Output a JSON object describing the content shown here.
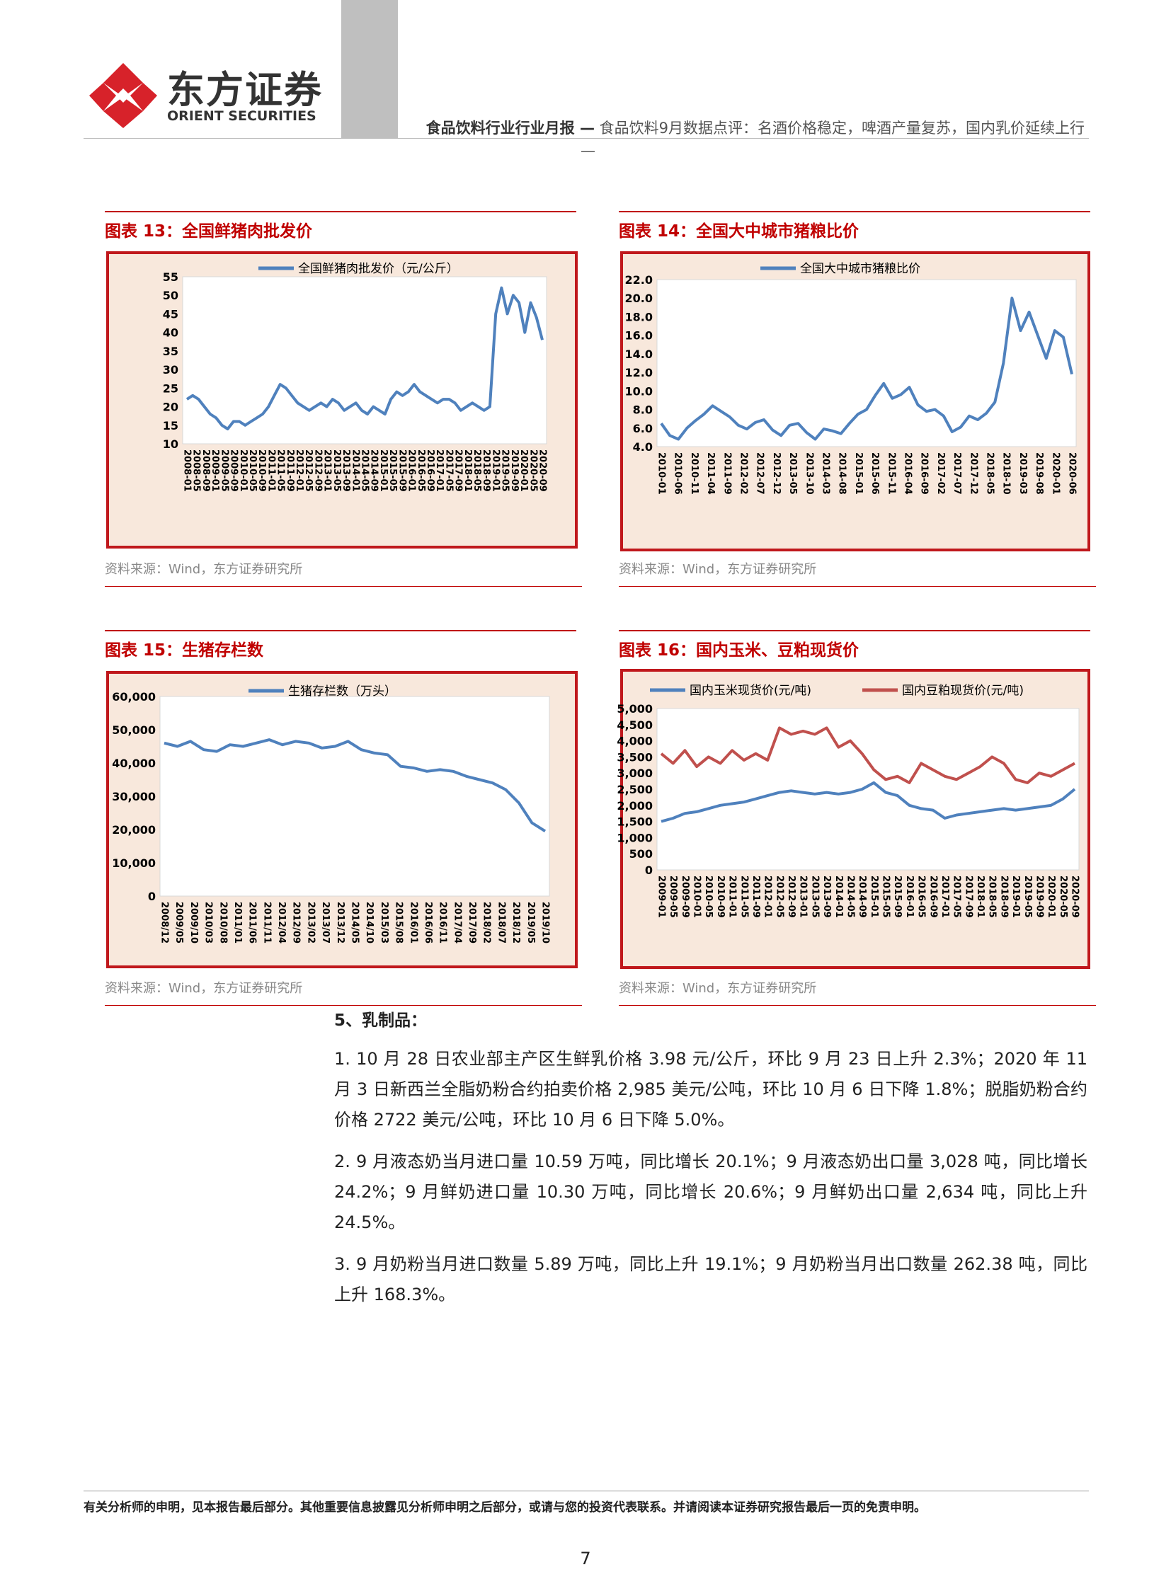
{
  "header": {
    "logo_cn": "东方证券",
    "logo_en": "ORIENT SECURITIES",
    "report_type": "食品饮料行业行业月报 —",
    "report_title": "食品饮料9月数据点评：名酒价格稳定，啤酒产量复苏，国内乳价延续上行",
    "trail": "—"
  },
  "figures": [
    {
      "title": "图表 13：全国鲜猪肉批发价",
      "source": "资料来源：Wind，东方证券研究所",
      "chart_data": {
        "type": "line",
        "title": "",
        "xlabel": "",
        "ylabel": "",
        "ylim": [
          10,
          55
        ],
        "yticks": [
          "55",
          "50",
          "45",
          "40",
          "35",
          "30",
          "25",
          "20",
          "15",
          "10"
        ],
        "legend_position": "top",
        "x_tick_labels": [
          "2008-01",
          "2008-05",
          "2008-09",
          "2009-01",
          "2009-05",
          "2009-09",
          "2010-01",
          "2010-05",
          "2010-09",
          "2011-01",
          "2011-05",
          "2011-09",
          "2012-01",
          "2012-05",
          "2012-09",
          "2013-01",
          "2013-05",
          "2013-09",
          "2014-01",
          "2014-05",
          "2014-09",
          "2015-01",
          "2015-05",
          "2015-09",
          "2016-01",
          "2016-05",
          "2016-09",
          "2017-01",
          "2017-05",
          "2017-09",
          "2018-01",
          "2018-05",
          "2018-09",
          "2019-01",
          "2019-05",
          "2019-09",
          "2020-01",
          "2020-05",
          "2020-09"
        ],
        "series": [
          {
            "name": "全国鲜猪肉批发价（元/公斤）",
            "color": "#4f81bd",
            "values": [
              22,
              23,
              22,
              20,
              18,
              17,
              15,
              14,
              16,
              16,
              15,
              16,
              17,
              18,
              20,
              23,
              26,
              25,
              23,
              21,
              20,
              19,
              20,
              21,
              20,
              22,
              21,
              19,
              20,
              21,
              19,
              18,
              20,
              19,
              18,
              22,
              24,
              23,
              24,
              26,
              24,
              23,
              22,
              21,
              22,
              22,
              21,
              19,
              20,
              21,
              20,
              19,
              20,
              45,
              52,
              45,
              50,
              48,
              40,
              48,
              44,
              38
            ]
          }
        ]
      }
    },
    {
      "title": "图表 14：全国大中城市猪粮比价",
      "source": "资料来源：Wind，东方证券研究所",
      "chart_data": {
        "type": "line",
        "title": "",
        "xlabel": "",
        "ylabel": "",
        "ylim": [
          4.0,
          22.0
        ],
        "yticks": [
          "22.0",
          "20.0",
          "18.0",
          "16.0",
          "14.0",
          "12.0",
          "10.0",
          "8.0",
          "6.0",
          "4.0"
        ],
        "legend_position": "top",
        "x_tick_labels": [
          "2010-01",
          "2010-06",
          "2010-11",
          "2011-04",
          "2011-09",
          "2012-02",
          "2012-07",
          "2012-12",
          "2013-05",
          "2013-10",
          "2014-03",
          "2014-08",
          "2015-01",
          "2015-06",
          "2015-11",
          "2016-04",
          "2016-09",
          "2017-02",
          "2017-07",
          "2017-12",
          "2018-05",
          "2018-10",
          "2019-03",
          "2019-08",
          "2020-01",
          "2020-06"
        ],
        "series": [
          {
            "name": "全国大中城市猪粮比价",
            "color": "#4f81bd",
            "values": [
              6.5,
              5.2,
              4.8,
              6.0,
              6.8,
              7.5,
              8.4,
              7.8,
              7.2,
              6.3,
              5.9,
              6.6,
              6.9,
              5.8,
              5.2,
              6.3,
              6.5,
              5.5,
              4.8,
              5.9,
              5.7,
              5.4,
              6.5,
              7.5,
              8.0,
              9.5,
              10.8,
              9.2,
              9.6,
              10.4,
              8.5,
              7.8,
              8.0,
              7.3,
              5.6,
              6.1,
              7.3,
              6.9,
              7.6,
              8.8,
              13.0,
              20.0,
              16.5,
              18.5,
              16.0,
              13.5,
              16.5,
              15.8,
              11.8
            ]
          }
        ]
      }
    },
    {
      "title": "图表 15：生猪存栏数",
      "source": "资料来源：Wind，东方证券研究所",
      "chart_data": {
        "type": "line",
        "title": "",
        "xlabel": "",
        "ylabel": "",
        "ylim": [
          0,
          60000
        ],
        "yticks": [
          "60,000",
          "50,000",
          "40,000",
          "30,000",
          "20,000",
          "10,000",
          "0"
        ],
        "legend_position": "top",
        "x_tick_labels": [
          "2008/12",
          "2009/05",
          "2009/10",
          "2010/03",
          "2010/08",
          "2011/01",
          "2011/06",
          "2011/11",
          "2012/04",
          "2012/09",
          "2013/02",
          "2013/07",
          "2013/12",
          "2014/05",
          "2014/10",
          "2015/03",
          "2015/08",
          "2016/01",
          "2016/06",
          "2016/11",
          "2017/04",
          "2017/09",
          "2018/02",
          "2018/07",
          "2018/12",
          "2019/05",
          "2019/10"
        ],
        "series": [
          {
            "name": "生猪存栏数（万头）",
            "color": "#4f81bd",
            "values": [
              46000,
              45000,
              46500,
              44000,
              43500,
              45500,
              45000,
              46000,
              47000,
              45500,
              46500,
              46000,
              44500,
              45000,
              46500,
              44000,
              43000,
              42500,
              39000,
              38500,
              37500,
              38000,
              37500,
              36000,
              35000,
              34000,
              32000,
              28000,
              22000,
              19500
            ]
          }
        ]
      }
    },
    {
      "title": "图表 16：国内玉米、豆粕现货价",
      "source": "资料来源：Wind，东方证券研究所",
      "chart_data": {
        "type": "line",
        "title": "",
        "xlabel": "",
        "ylabel": "",
        "ylim": [
          0,
          5000
        ],
        "yticks": [
          "5,000",
          "4,500",
          "4,000",
          "3,500",
          "3,000",
          "2,500",
          "2,000",
          "1,500",
          "1,000",
          "500",
          "0"
        ],
        "legend_position": "top",
        "x_tick_labels": [
          "2009-01",
          "2009-05",
          "2009-09",
          "2010-01",
          "2010-05",
          "2010-09",
          "2011-01",
          "2011-05",
          "2011-09",
          "2012-01",
          "2012-05",
          "2012-09",
          "2013-01",
          "2013-05",
          "2013-09",
          "2014-01",
          "2014-05",
          "2014-09",
          "2015-01",
          "2015-05",
          "2015-09",
          "2016-01",
          "2016-05",
          "2016-09",
          "2017-01",
          "2017-05",
          "2017-09",
          "2018-01",
          "2018-05",
          "2018-09",
          "2019-01",
          "2019-05",
          "2019-09",
          "2020-01",
          "2020-05",
          "2020-09"
        ],
        "series": [
          {
            "name": "国内玉米现货价(元/吨)",
            "color": "#4f81bd",
            "values": [
              1500,
              1600,
              1750,
              1800,
              1900,
              2000,
              2050,
              2100,
              2200,
              2300,
              2400,
              2450,
              2400,
              2350,
              2400,
              2350,
              2400,
              2500,
              2700,
              2400,
              2300,
              2000,
              1900,
              1850,
              1600,
              1700,
              1750,
              1800,
              1850,
              1900,
              1850,
              1900,
              1950,
              2000,
              2200,
              2500
            ]
          },
          {
            "name": "国内豆粕现货价(元/吨)",
            "color": "#c0504d",
            "values": [
              3600,
              3300,
              3700,
              3200,
              3500,
              3300,
              3700,
              3400,
              3600,
              3400,
              4400,
              4200,
              4300,
              4200,
              4400,
              3800,
              4000,
              3600,
              3100,
              2800,
              2900,
              2700,
              3300,
              3100,
              2900,
              2800,
              3000,
              3200,
              3500,
              3300,
              2800,
              2700,
              3000,
              2900,
              3100,
              3300
            ]
          }
        ]
      }
    }
  ],
  "section": {
    "heading": "5、乳制品：",
    "paragraphs": [
      "1. 10 月 28 日农业部主产区生鲜乳价格 3.98 元/公斤，环比 9 月 23 日上升 2.3%；2020 年 11 月 3 日新西兰全脂奶粉合约拍卖价格 2,985 美元/公吨，环比 10 月 6 日下降 1.8%；脱脂奶粉合约价格 2722 美元/公吨，环比 10 月 6 日下降 5.0%。",
      "2. 9 月液态奶当月进口量 10.59 万吨，同比增长 20.1%；9 月液态奶出口量 3,028 吨，同比增长 24.2%；9 月鲜奶进口量 10.30 万吨，同比增长 20.6%；9 月鲜奶出口量 2,634 吨，同比上升 24.5%。",
      "3. 9 月奶粉当月进口数量 5.89 万吨，同比上升 19.1%；9 月奶粉当月出口数量 262.38 吨，同比上升 168.3%。"
    ]
  },
  "footer": {
    "disclaimer": "有关分析师的申明，见本报告最后部分。其他重要信息披露见分析师申明之后部分，或请与您的投资代表联系。并请阅读本证券研究报告最后一页的免责申明。",
    "page_number": "7"
  }
}
